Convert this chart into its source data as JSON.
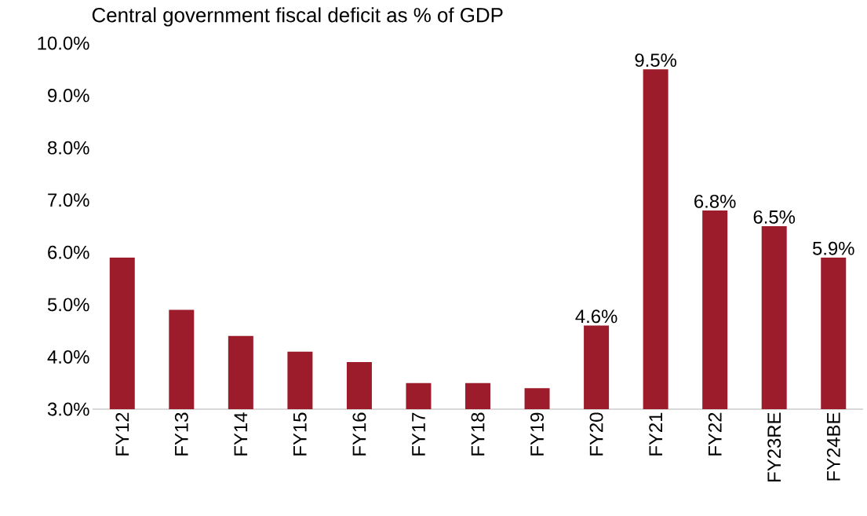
{
  "chart_data": {
    "type": "bar",
    "title": "Central government fiscal deficit as % of GDP",
    "categories": [
      "FY12",
      "FY13",
      "FY14",
      "FY15",
      "FY16",
      "FY17",
      "FY18",
      "FY19",
      "FY20",
      "FY21",
      "FY22",
      "FY23RE",
      "FY24BE"
    ],
    "values": [
      5.9,
      4.9,
      4.4,
      4.1,
      3.9,
      3.5,
      3.5,
      3.4,
      4.6,
      9.5,
      6.8,
      6.5,
      5.9
    ],
    "value_labels": [
      null,
      null,
      null,
      null,
      null,
      null,
      null,
      null,
      "4.6%",
      "9.5%",
      "6.8%",
      "6.5%",
      "5.9%"
    ],
    "color": "#9c1c2b",
    "ylim": [
      3,
      10
    ],
    "yticks": [
      {
        "value": 3,
        "label": "3.0%"
      },
      {
        "value": 4,
        "label": "4.0%"
      },
      {
        "value": 5,
        "label": "5.0%"
      },
      {
        "value": 6,
        "label": "6.0%"
      },
      {
        "value": 7,
        "label": "7.0%"
      },
      {
        "value": 8,
        "label": "8.0%"
      },
      {
        "value": 9,
        "label": "9.0%"
      },
      {
        "value": 10,
        "label": "10.0%"
      }
    ],
    "grid": false
  }
}
